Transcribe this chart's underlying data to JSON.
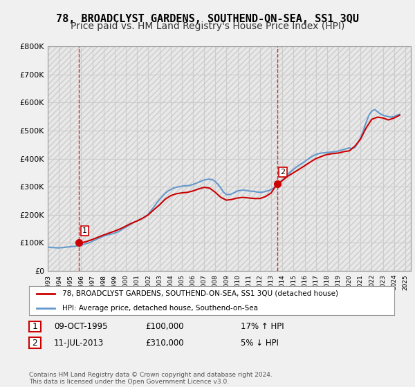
{
  "title": "78, BROADCLYST GARDENS, SOUTHEND-ON-SEA, SS1 3QU",
  "subtitle": "Price paid vs. HM Land Registry's House Price Index (HPI)",
  "ylabel_ticks": [
    0,
    100000,
    200000,
    300000,
    400000,
    500000,
    600000,
    700000,
    800000
  ],
  "ylabel_labels": [
    "£0",
    "£100K",
    "£200K",
    "£300K",
    "£400K",
    "£500K",
    "£600K",
    "£700K",
    "£800K"
  ],
  "ylim": [
    0,
    800000
  ],
  "xlim_start": 1993.0,
  "xlim_end": 2025.5,
  "sale1_x": 1995.78,
  "sale1_y": 100000,
  "sale1_label": "1",
  "sale2_x": 2013.53,
  "sale2_y": 310000,
  "sale2_label": "2",
  "sale_color": "#cc0000",
  "hpi_color": "#6699cc",
  "legend_label_red": "78, BROADCLYST GARDENS, SOUTHEND-ON-SEA, SS1 3QU (detached house)",
  "legend_label_blue": "HPI: Average price, detached house, Southend-on-Sea",
  "table_row1": [
    "1",
    "09-OCT-1995",
    "£100,000",
    "17% ↑ HPI"
  ],
  "table_row2": [
    "2",
    "11-JUL-2013",
    "£310,000",
    "5% ↓ HPI"
  ],
  "footer": "Contains HM Land Registry data © Crown copyright and database right 2024.\nThis data is licensed under the Open Government Licence v3.0.",
  "background_color": "#f0f0f0",
  "plot_bg_color": "#ffffff",
  "grid_color": "#cccccc",
  "title_fontsize": 11,
  "subtitle_fontsize": 10,
  "axis_fontsize": 8,
  "hpi_data_x": [
    1993.0,
    1993.25,
    1993.5,
    1993.75,
    1994.0,
    1994.25,
    1994.5,
    1994.75,
    1995.0,
    1995.25,
    1995.5,
    1995.75,
    1996.0,
    1996.25,
    1996.5,
    1996.75,
    1997.0,
    1997.25,
    1997.5,
    1997.75,
    1998.0,
    1998.25,
    1998.5,
    1998.75,
    1999.0,
    1999.25,
    1999.5,
    1999.75,
    2000.0,
    2000.25,
    2000.5,
    2000.75,
    2001.0,
    2001.25,
    2001.5,
    2001.75,
    2002.0,
    2002.25,
    2002.5,
    2002.75,
    2003.0,
    2003.25,
    2003.5,
    2003.75,
    2004.0,
    2004.25,
    2004.5,
    2004.75,
    2005.0,
    2005.25,
    2005.5,
    2005.75,
    2006.0,
    2006.25,
    2006.5,
    2006.75,
    2007.0,
    2007.25,
    2007.5,
    2007.75,
    2008.0,
    2008.25,
    2008.5,
    2008.75,
    2009.0,
    2009.25,
    2009.5,
    2009.75,
    2010.0,
    2010.25,
    2010.5,
    2010.75,
    2011.0,
    2011.25,
    2011.5,
    2011.75,
    2012.0,
    2012.25,
    2012.5,
    2012.75,
    2013.0,
    2013.25,
    2013.5,
    2013.75,
    2014.0,
    2014.25,
    2014.5,
    2014.75,
    2015.0,
    2015.25,
    2015.5,
    2015.75,
    2016.0,
    2016.25,
    2016.5,
    2016.75,
    2017.0,
    2017.25,
    2017.5,
    2017.75,
    2018.0,
    2018.25,
    2018.5,
    2018.75,
    2019.0,
    2019.25,
    2019.5,
    2019.75,
    2020.0,
    2020.25,
    2020.5,
    2020.75,
    2021.0,
    2021.25,
    2021.5,
    2021.75,
    2022.0,
    2022.25,
    2022.5,
    2022.75,
    2023.0,
    2023.25,
    2023.5,
    2023.75,
    2024.0,
    2024.25,
    2024.5
  ],
  "hpi_data_y": [
    85000,
    84000,
    83000,
    82500,
    82000,
    83000,
    84000,
    85000,
    86000,
    87000,
    88000,
    90000,
    92000,
    95000,
    98000,
    101000,
    106000,
    110000,
    115000,
    120000,
    124000,
    127000,
    130000,
    132000,
    135000,
    139000,
    144000,
    150000,
    156000,
    162000,
    168000,
    174000,
    178000,
    182000,
    188000,
    194000,
    202000,
    215000,
    228000,
    242000,
    254000,
    265000,
    276000,
    284000,
    290000,
    295000,
    298000,
    300000,
    302000,
    303000,
    304000,
    305000,
    308000,
    312000,
    316000,
    320000,
    324000,
    326000,
    327000,
    325000,
    318000,
    308000,
    295000,
    280000,
    272000,
    272000,
    275000,
    280000,
    285000,
    287000,
    288000,
    287000,
    285000,
    284000,
    283000,
    281000,
    280000,
    281000,
    283000,
    286000,
    290000,
    296000,
    304000,
    312000,
    323000,
    334000,
    344000,
    353000,
    362000,
    370000,
    377000,
    383000,
    390000,
    397000,
    404000,
    410000,
    415000,
    418000,
    420000,
    421000,
    422000,
    423000,
    424000,
    425000,
    427000,
    430000,
    433000,
    436000,
    438000,
    436000,
    440000,
    455000,
    475000,
    500000,
    530000,
    555000,
    570000,
    575000,
    568000,
    560000,
    555000,
    552000,
    550000,
    548000,
    550000,
    555000,
    558000
  ],
  "price_data_x": [
    1993.5,
    1994.0,
    1994.5,
    1995.0,
    1995.5,
    1995.78,
    1996.0,
    1996.5,
    1997.0,
    1997.5,
    1998.0,
    1998.5,
    1999.0,
    1999.5,
    2000.0,
    2000.5,
    2001.0,
    2001.5,
    2002.0,
    2002.5,
    2003.0,
    2003.5,
    2004.0,
    2004.5,
    2005.0,
    2005.5,
    2006.0,
    2006.5,
    2007.0,
    2007.5,
    2008.0,
    2008.5,
    2009.0,
    2009.5,
    2010.0,
    2010.5,
    2011.0,
    2011.5,
    2012.0,
    2012.5,
    2013.0,
    2013.53,
    2014.0,
    2014.5,
    2015.0,
    2015.5,
    2016.0,
    2016.5,
    2017.0,
    2017.5,
    2018.0,
    2018.5,
    2019.0,
    2019.5,
    2020.0,
    2020.5,
    2021.0,
    2021.5,
    2022.0,
    2022.5,
    2023.0,
    2023.5,
    2024.0,
    2024.5
  ],
  "price_data_y": [
    null,
    null,
    null,
    null,
    null,
    100000,
    100000,
    105000,
    112000,
    120000,
    128000,
    135000,
    142000,
    150000,
    160000,
    170000,
    178000,
    188000,
    200000,
    218000,
    235000,
    255000,
    268000,
    275000,
    278000,
    280000,
    285000,
    292000,
    298000,
    295000,
    280000,
    262000,
    252000,
    255000,
    260000,
    262000,
    260000,
    258000,
    258000,
    265000,
    278000,
    310000,
    322000,
    338000,
    350000,
    362000,
    375000,
    388000,
    400000,
    408000,
    415000,
    418000,
    420000,
    425000,
    428000,
    445000,
    470000,
    510000,
    540000,
    548000,
    545000,
    538000,
    545000,
    555000
  ]
}
